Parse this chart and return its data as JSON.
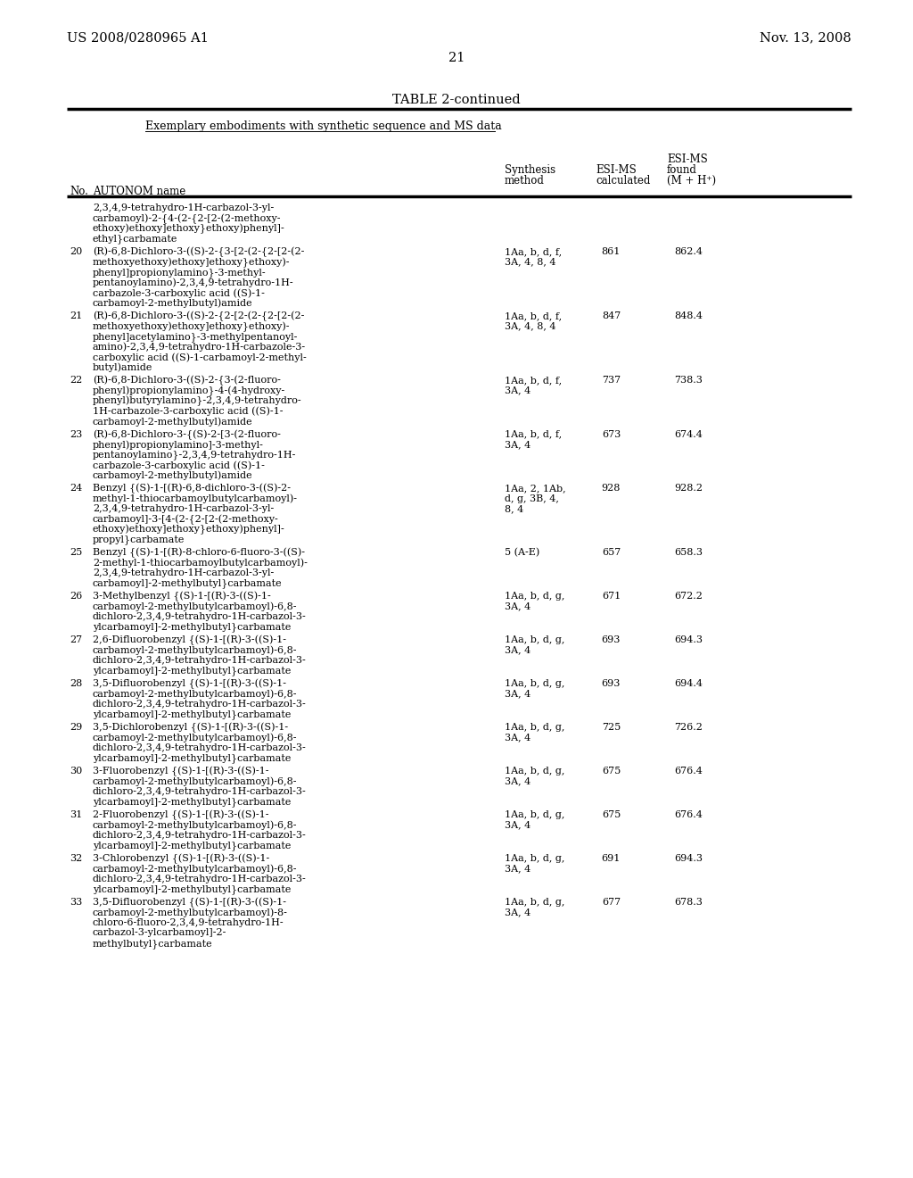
{
  "header_left": "US 2008/0280965 A1",
  "header_right": "Nov. 13, 2008",
  "page_number": "21",
  "table_title": "TABLE 2-continued",
  "table_subtitle": "Exemplary embodiments with synthetic sequence and MS data",
  "rows": [
    {
      "no": "",
      "name_lines": [
        "2,3,4,9-tetrahydro-1H-carbazol-3-yl-",
        "carbamoyl)-2-{4-(2-{2-[2-(2-methoxy-",
        "ethoxy)ethoxy]ethoxy}ethoxy)phenyl]-",
        "ethyl}carbamate"
      ],
      "synthesis_lines": [],
      "esi_calc": "",
      "esi_found": ""
    },
    {
      "no": "20",
      "name_lines": [
        "(R)-6,8-Dichloro-3-((S)-2-{3-[2-(2-{2-[2-(2-",
        "methoxyethoxy)ethoxy]ethoxy}ethoxy)-",
        "phenyl]propionylamino}-3-methyl-",
        "pentanoylamino)-2,3,4,9-tetrahydro-1H-",
        "carbazole-3-carboxylic acid ((S)-1-",
        "carbamoyl-2-methylbutyl)amide"
      ],
      "synthesis_lines": [
        "1Aa, b, d, f,",
        "3A, 4, 8, 4"
      ],
      "esi_calc": "861",
      "esi_found": "862.4"
    },
    {
      "no": "21",
      "name_lines": [
        "(R)-6,8-Dichloro-3-((S)-2-{2-[2-(2-{2-[2-(2-",
        "methoxyethoxy)ethoxy]ethoxy}ethoxy)-",
        "phenyl]acetylamino}-3-methylpentanoyl-",
        "amino)-2,3,4,9-tetrahydro-1H-carbazole-3-",
        "carboxylic acid ((S)-1-carbamoyl-2-methyl-",
        "butyl)amide"
      ],
      "synthesis_lines": [
        "1Aa, b, d, f,",
        "3A, 4, 8, 4"
      ],
      "esi_calc": "847",
      "esi_found": "848.4"
    },
    {
      "no": "22",
      "name_lines": [
        "(R)-6,8-Dichloro-3-((S)-2-{3-(2-fluoro-",
        "phenyl)propionylamino}-4-(4-hydroxy-",
        "phenyl)butyrylamino}-2,3,4,9-tetrahydro-",
        "1H-carbazole-3-carboxylic acid ((S)-1-",
        "carbamoyl-2-methylbutyl)amide"
      ],
      "synthesis_lines": [
        "1Aa, b, d, f,",
        "3A, 4"
      ],
      "esi_calc": "737",
      "esi_found": "738.3"
    },
    {
      "no": "23",
      "name_lines": [
        "(R)-6,8-Dichloro-3-{(S)-2-[3-(2-fluoro-",
        "phenyl)propionylamino]-3-methyl-",
        "pentanoylamino}-2,3,4,9-tetrahydro-1H-",
        "carbazole-3-carboxylic acid ((S)-1-",
        "carbamoyl-2-methylbutyl)amide"
      ],
      "synthesis_lines": [
        "1Aa, b, d, f,",
        "3A, 4"
      ],
      "esi_calc": "673",
      "esi_found": "674.4"
    },
    {
      "no": "24",
      "name_lines": [
        "Benzyl {(S)-1-[(R)-6,8-dichloro-3-((S)-2-",
        "methyl-1-thiocarbamoylbutylcarbamoyl)-",
        "2,3,4,9-tetrahydro-1H-carbazol-3-yl-",
        "carbamoyl]-3-[4-(2-{2-[2-(2-methoxy-",
        "ethoxy)ethoxy]ethoxy}ethoxy)phenyl]-",
        "propyl}carbamate"
      ],
      "synthesis_lines": [
        "1Aa, 2, 1Ab,",
        "d, g, 3B, 4,",
        "8, 4"
      ],
      "esi_calc": "928",
      "esi_found": "928.2"
    },
    {
      "no": "25",
      "name_lines": [
        "Benzyl {(S)-1-[(R)-8-chloro-6-fluoro-3-((S)-",
        "2-methyl-1-thiocarbamoylbutylcarbamoyl)-",
        "2,3,4,9-tetrahydro-1H-carbazol-3-yl-",
        "carbamoyl]-2-methylbutyl}carbamate"
      ],
      "synthesis_lines": [
        "5 (A-E)"
      ],
      "esi_calc": "657",
      "esi_found": "658.3"
    },
    {
      "no": "26",
      "name_lines": [
        "3-Methylbenzyl {(S)-1-[(R)-3-((S)-1-",
        "carbamoyl-2-methylbutylcarbamoyl)-6,8-",
        "dichloro-2,3,4,9-tetrahydro-1H-carbazol-3-",
        "ylcarbamoyl]-2-methylbutyl}carbamate"
      ],
      "synthesis_lines": [
        "1Aa, b, d, g,",
        "3A, 4"
      ],
      "esi_calc": "671",
      "esi_found": "672.2"
    },
    {
      "no": "27",
      "name_lines": [
        "2,6-Difluorobenzyl {(S)-1-[(R)-3-((S)-1-",
        "carbamoyl-2-methylbutylcarbamoyl)-6,8-",
        "dichloro-2,3,4,9-tetrahydro-1H-carbazol-3-",
        "ylcarbamoyl]-2-methylbutyl}carbamate"
      ],
      "synthesis_lines": [
        "1Aa, b, d, g,",
        "3A, 4"
      ],
      "esi_calc": "693",
      "esi_found": "694.3"
    },
    {
      "no": "28",
      "name_lines": [
        "3,5-Difluorobenzyl {(S)-1-[(R)-3-((S)-1-",
        "carbamoyl-2-methylbutylcarbamoyl)-6,8-",
        "dichloro-2,3,4,9-tetrahydro-1H-carbazol-3-",
        "ylcarbamoyl]-2-methylbutyl}carbamate"
      ],
      "synthesis_lines": [
        "1Aa, b, d, g,",
        "3A, 4"
      ],
      "esi_calc": "693",
      "esi_found": "694.4"
    },
    {
      "no": "29",
      "name_lines": [
        "3,5-Dichlorobenzyl {(S)-1-[(R)-3-((S)-1-",
        "carbamoyl-2-methylbutylcarbamoyl)-6,8-",
        "dichloro-2,3,4,9-tetrahydro-1H-carbazol-3-",
        "ylcarbamoyl]-2-methylbutyl}carbamate"
      ],
      "synthesis_lines": [
        "1Aa, b, d, g,",
        "3A, 4"
      ],
      "esi_calc": "725",
      "esi_found": "726.2"
    },
    {
      "no": "30",
      "name_lines": [
        "3-Fluorobenzyl {(S)-1-[(R)-3-((S)-1-",
        "carbamoyl-2-methylbutylcarbamoyl)-6,8-",
        "dichloro-2,3,4,9-tetrahydro-1H-carbazol-3-",
        "ylcarbamoyl]-2-methylbutyl}carbamate"
      ],
      "synthesis_lines": [
        "1Aa, b, d, g,",
        "3A, 4"
      ],
      "esi_calc": "675",
      "esi_found": "676.4"
    },
    {
      "no": "31",
      "name_lines": [
        "2-Fluorobenzyl {(S)-1-[(R)-3-((S)-1-",
        "carbamoyl-2-methylbutylcarbamoyl)-6,8-",
        "dichloro-2,3,4,9-tetrahydro-1H-carbazol-3-",
        "ylcarbamoyl]-2-methylbutyl}carbamate"
      ],
      "synthesis_lines": [
        "1Aa, b, d, g,",
        "3A, 4"
      ],
      "esi_calc": "675",
      "esi_found": "676.4"
    },
    {
      "no": "32",
      "name_lines": [
        "3-Chlorobenzyl {(S)-1-[(R)-3-((S)-1-",
        "carbamoyl-2-methylbutylcarbamoyl)-6,8-",
        "dichloro-2,3,4,9-tetrahydro-1H-carbazol-3-",
        "ylcarbamoyl]-2-methylbutyl}carbamate"
      ],
      "synthesis_lines": [
        "1Aa, b, d, g,",
        "3A, 4"
      ],
      "esi_calc": "691",
      "esi_found": "694.3"
    },
    {
      "no": "33",
      "name_lines": [
        "3,5-Difluorobenzyl {(S)-1-[(R)-3-((S)-1-",
        "carbamoyl-2-methylbutylcarbamoyl)-8-",
        "chloro-6-fluoro-2,3,4,9-tetrahydro-1H-",
        "carbazol-3-ylcarbamoyl]-2-",
        "methylbutyl}carbamate"
      ],
      "synthesis_lines": [
        "1Aa, b, d, g,",
        "3A, 4"
      ],
      "esi_calc": "677",
      "esi_found": "678.3"
    }
  ]
}
